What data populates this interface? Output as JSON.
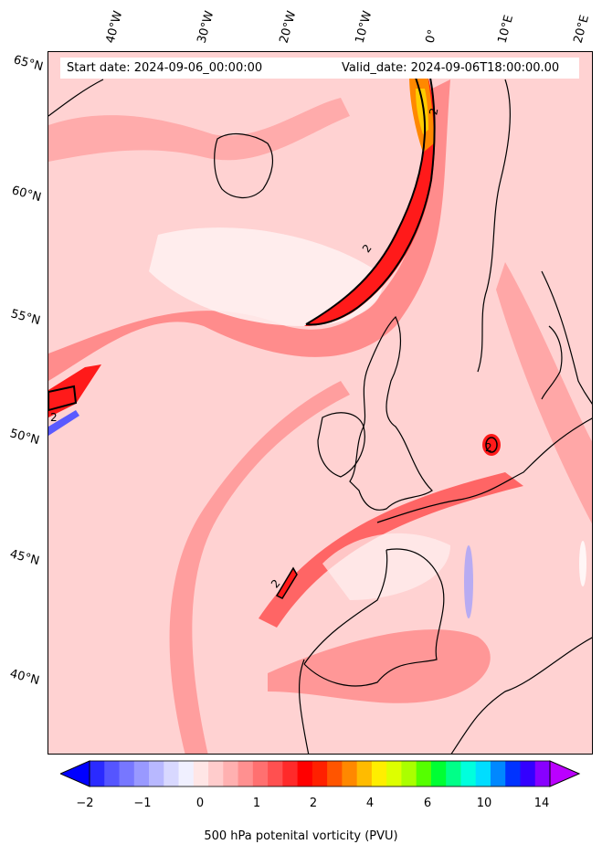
{
  "header": {
    "start_date": "Start date: 2024-09-06_00:00:00",
    "valid_date": "Valid_date: 2024-09-06T18:00:00.00"
  },
  "latitude_labels": [
    "65°N",
    "60°N",
    "55°N",
    "50°N",
    "45°N",
    "40°N"
  ],
  "longitude_labels": [
    "40°W",
    "30°W",
    "20°W",
    "10°W",
    "0°",
    "10°E",
    "20°E"
  ],
  "contour_labels": [
    "2",
    "2",
    "2",
    "2",
    "2",
    "2"
  ],
  "colorbar": {
    "ticks": [
      "−2",
      "−1",
      "0",
      "1",
      "2",
      "4",
      "6",
      "10",
      "14"
    ],
    "label": "500 hPa potenital vorticity (PVU)",
    "colors": [
      "#0000ff",
      "#2a2aff",
      "#5555ff",
      "#7777ff",
      "#9999ff",
      "#b8b8ff",
      "#d8d8ff",
      "#f0f0ff",
      "#ffe6e6",
      "#ffcccc",
      "#ffb0b0",
      "#ff9090",
      "#ff7070",
      "#ff5050",
      "#ff2a2a",
      "#ff0000",
      "#ff2000",
      "#ff5500",
      "#ff8800",
      "#ffbb00",
      "#ffee00",
      "#ddff00",
      "#aaff00",
      "#55ff00",
      "#00ff33",
      "#00ff88",
      "#00ffdd",
      "#00ddff",
      "#0088ff",
      "#0033ff",
      "#3300ff",
      "#8800ff",
      "#bb00ff"
    ]
  }
}
